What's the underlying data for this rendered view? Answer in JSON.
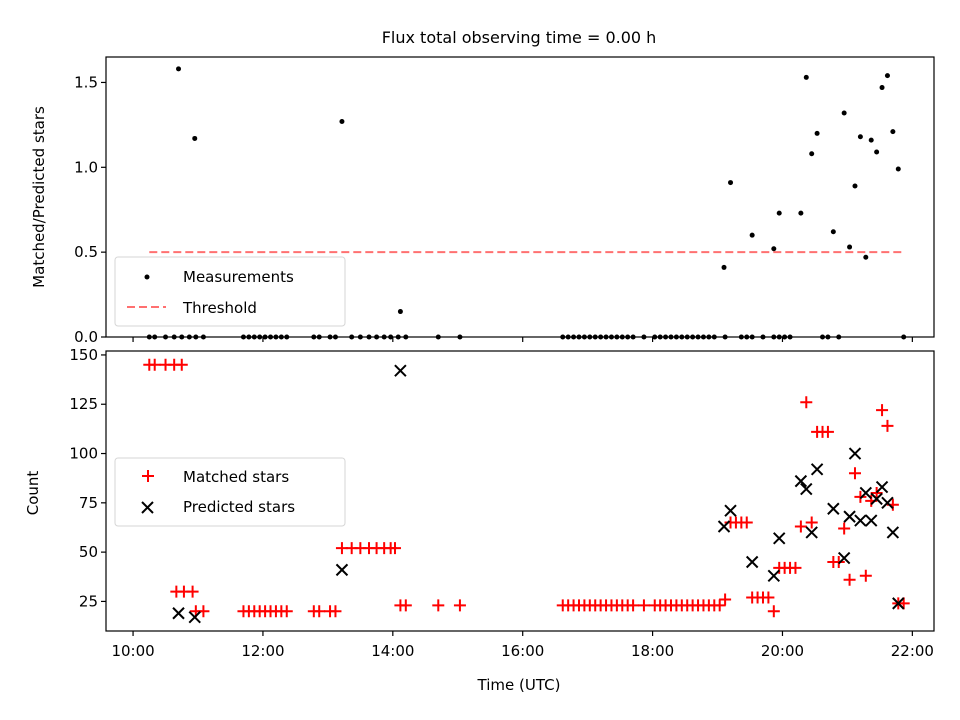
{
  "chart_data": [
    {
      "type": "scatter",
      "title": "Flux total observing time = 0.00 h",
      "xlabel": "",
      "ylabel": "Matched/Predicted stars",
      "xlim": [
        "09:35",
        "22:20"
      ],
      "ylim": [
        0,
        1.65
      ],
      "yticks": [
        "0.0",
        "0.5",
        "1.0",
        "1.5"
      ],
      "legend_position": "lower-left",
      "series": [
        {
          "name": "Measurements",
          "marker": "dot",
          "color": "#000000",
          "points": [
            [
              "10:15",
              0
            ],
            [
              "10:20",
              0
            ],
            [
              "10:30",
              0
            ],
            [
              "10:38",
              0
            ],
            [
              "10:45",
              0
            ],
            [
              "10:52",
              0
            ],
            [
              "10:58",
              0
            ],
            [
              "11:05",
              0
            ],
            [
              "10:42",
              1.58
            ],
            [
              "10:57",
              1.17
            ],
            [
              "11:42",
              0
            ],
            [
              "11:47",
              0
            ],
            [
              "11:52",
              0
            ],
            [
              "11:57",
              0
            ],
            [
              "12:02",
              0
            ],
            [
              "12:07",
              0
            ],
            [
              "12:12",
              0
            ],
            [
              "12:17",
              0
            ],
            [
              "12:22",
              0
            ],
            [
              "12:47",
              0
            ],
            [
              "12:52",
              0
            ],
            [
              "13:02",
              0
            ],
            [
              "13:07",
              0
            ],
            [
              "13:13",
              1.27
            ],
            [
              "13:22",
              0
            ],
            [
              "13:30",
              0
            ],
            [
              "13:38",
              0
            ],
            [
              "13:45",
              0
            ],
            [
              "13:52",
              0
            ],
            [
              "13:58",
              0
            ],
            [
              "14:05",
              0
            ],
            [
              "14:12",
              0
            ],
            [
              "14:07",
              0.15
            ],
            [
              "14:42",
              0
            ],
            [
              "15:02",
              0
            ],
            [
              "16:37",
              0
            ],
            [
              "16:42",
              0
            ],
            [
              "16:47",
              0
            ],
            [
              "16:52",
              0
            ],
            [
              "16:57",
              0
            ],
            [
              "17:02",
              0
            ],
            [
              "17:07",
              0
            ],
            [
              "17:12",
              0
            ],
            [
              "17:17",
              0
            ],
            [
              "17:22",
              0
            ],
            [
              "17:27",
              0
            ],
            [
              "17:32",
              0
            ],
            [
              "17:37",
              0
            ],
            [
              "17:42",
              0
            ],
            [
              "17:52",
              0
            ],
            [
              "18:02",
              0
            ],
            [
              "18:07",
              0
            ],
            [
              "18:12",
              0
            ],
            [
              "18:17",
              0
            ],
            [
              "18:22",
              0
            ],
            [
              "18:27",
              0
            ],
            [
              "18:32",
              0
            ],
            [
              "18:37",
              0
            ],
            [
              "18:42",
              0
            ],
            [
              "18:47",
              0
            ],
            [
              "18:52",
              0
            ],
            [
              "18:57",
              0
            ],
            [
              "19:07",
              0
            ],
            [
              "19:22",
              0
            ],
            [
              "19:27",
              0
            ],
            [
              "19:32",
              0
            ],
            [
              "19:42",
              0
            ],
            [
              "19:52",
              0
            ],
            [
              "19:57",
              0
            ],
            [
              "20:02",
              0
            ],
            [
              "20:07",
              0
            ],
            [
              "20:37",
              0
            ],
            [
              "20:42",
              0
            ],
            [
              "20:52",
              0
            ],
            [
              "21:52",
              0
            ],
            [
              "19:06",
              0.41
            ],
            [
              "19:12",
              0.91
            ],
            [
              "19:32",
              0.6
            ],
            [
              "19:52",
              0.52
            ],
            [
              "19:57",
              0.73
            ],
            [
              "20:17",
              0.73
            ],
            [
              "20:22",
              1.53
            ],
            [
              "20:27",
              1.08
            ],
            [
              "20:32",
              1.2
            ],
            [
              "20:47",
              0.62
            ],
            [
              "20:57",
              1.32
            ],
            [
              "21:02",
              0.53
            ],
            [
              "21:07",
              0.89
            ],
            [
              "21:12",
              1.18
            ],
            [
              "21:17",
              0.47
            ],
            [
              "21:22",
              1.16
            ],
            [
              "21:27",
              1.09
            ],
            [
              "21:32",
              1.47
            ],
            [
              "21:37",
              1.54
            ],
            [
              "21:42",
              1.21
            ],
            [
              "21:47",
              0.99
            ]
          ]
        },
        {
          "name": "Threshold",
          "type": "line",
          "style": "dashed",
          "color": "#ff7070",
          "x": [
            "10:15",
            "21:52"
          ],
          "y": [
            0.5,
            0.5
          ]
        }
      ]
    },
    {
      "type": "scatter",
      "title": "",
      "xlabel": "Time (UTC)",
      "ylabel": "Count",
      "xlim": [
        "09:35",
        "22:20"
      ],
      "ylim": [
        10,
        152
      ],
      "xticks": [
        "10:00",
        "12:00",
        "14:00",
        "16:00",
        "18:00",
        "20:00",
        "22:00"
      ],
      "yticks": [
        "25",
        "50",
        "75",
        "100",
        "125",
        "150"
      ],
      "legend_position": "center-left",
      "series": [
        {
          "name": "Matched stars",
          "marker": "plus",
          "color": "#ff0000",
          "points": [
            [
              "10:15",
              145
            ],
            [
              "10:20",
              145
            ],
            [
              "10:30",
              145
            ],
            [
              "10:38",
              145
            ],
            [
              "10:45",
              145
            ],
            [
              "10:40",
              30
            ],
            [
              "10:47",
              30
            ],
            [
              "10:55",
              30
            ],
            [
              "10:58",
              20
            ],
            [
              "11:05",
              20
            ],
            [
              "11:42",
              20
            ],
            [
              "11:47",
              20
            ],
            [
              "11:52",
              20
            ],
            [
              "11:57",
              20
            ],
            [
              "12:02",
              20
            ],
            [
              "12:07",
              20
            ],
            [
              "12:12",
              20
            ],
            [
              "12:17",
              20
            ],
            [
              "12:22",
              20
            ],
            [
              "12:47",
              20
            ],
            [
              "12:52",
              20
            ],
            [
              "13:02",
              20
            ],
            [
              "13:07",
              20
            ],
            [
              "13:13",
              52
            ],
            [
              "13:22",
              52
            ],
            [
              "13:30",
              52
            ],
            [
              "13:38",
              52
            ],
            [
              "13:45",
              52
            ],
            [
              "13:52",
              52
            ],
            [
              "13:58",
              52
            ],
            [
              "14:02",
              52
            ],
            [
              "14:07",
              23
            ],
            [
              "14:12",
              23
            ],
            [
              "14:42",
              23
            ],
            [
              "15:02",
              23
            ],
            [
              "16:37",
              23
            ],
            [
              "16:42",
              23
            ],
            [
              "16:47",
              23
            ],
            [
              "16:52",
              23
            ],
            [
              "16:57",
              23
            ],
            [
              "17:02",
              23
            ],
            [
              "17:07",
              23
            ],
            [
              "17:12",
              23
            ],
            [
              "17:17",
              23
            ],
            [
              "17:22",
              23
            ],
            [
              "17:27",
              23
            ],
            [
              "17:32",
              23
            ],
            [
              "17:37",
              23
            ],
            [
              "17:42",
              23
            ],
            [
              "17:52",
              23
            ],
            [
              "18:02",
              23
            ],
            [
              "18:07",
              23
            ],
            [
              "18:12",
              23
            ],
            [
              "18:17",
              23
            ],
            [
              "18:22",
              23
            ],
            [
              "18:27",
              23
            ],
            [
              "18:32",
              23
            ],
            [
              "18:37",
              23
            ],
            [
              "18:42",
              23
            ],
            [
              "18:47",
              23
            ],
            [
              "18:52",
              23
            ],
            [
              "18:57",
              23
            ],
            [
              "19:02",
              23
            ],
            [
              "19:07",
              26
            ],
            [
              "19:12",
              65
            ],
            [
              "19:17",
              65
            ],
            [
              "19:22",
              65
            ],
            [
              "19:27",
              65
            ],
            [
              "19:32",
              27
            ],
            [
              "19:37",
              27
            ],
            [
              "19:42",
              27
            ],
            [
              "19:47",
              27
            ],
            [
              "19:52",
              20
            ],
            [
              "19:57",
              42
            ],
            [
              "20:02",
              42
            ],
            [
              "20:07",
              42
            ],
            [
              "20:12",
              42
            ],
            [
              "20:17",
              63
            ],
            [
              "20:22",
              126
            ],
            [
              "20:27",
              65
            ],
            [
              "20:32",
              111
            ],
            [
              "20:37",
              111
            ],
            [
              "20:42",
              111
            ],
            [
              "20:47",
              45
            ],
            [
              "20:52",
              45
            ],
            [
              "20:57",
              62
            ],
            [
              "21:02",
              36
            ],
            [
              "21:07",
              90
            ],
            [
              "21:12",
              78
            ],
            [
              "21:17",
              38
            ],
            [
              "21:22",
              76
            ],
            [
              "21:27",
              80
            ],
            [
              "21:32",
              122
            ],
            [
              "21:37",
              114
            ],
            [
              "21:42",
              74
            ],
            [
              "21:47",
              24
            ],
            [
              "21:52",
              24
            ]
          ]
        },
        {
          "name": "Predicted stars",
          "marker": "x",
          "color": "#000000",
          "points": [
            [
              "10:42",
              19
            ],
            [
              "10:57",
              17
            ],
            [
              "13:13",
              41
            ],
            [
              "14:07",
              142
            ],
            [
              "19:06",
              63
            ],
            [
              "19:12",
              71
            ],
            [
              "19:32",
              45
            ],
            [
              "19:52",
              38
            ],
            [
              "19:57",
              57
            ],
            [
              "20:17",
              86
            ],
            [
              "20:22",
              82
            ],
            [
              "20:27",
              60
            ],
            [
              "20:32",
              92
            ],
            [
              "20:47",
              72
            ],
            [
              "20:57",
              47
            ],
            [
              "21:02",
              68
            ],
            [
              "21:07",
              100
            ],
            [
              "21:12",
              66
            ],
            [
              "21:17",
              80
            ],
            [
              "21:22",
              66
            ],
            [
              "21:27",
              77
            ],
            [
              "21:32",
              83
            ],
            [
              "21:37",
              75
            ],
            [
              "21:42",
              60
            ],
            [
              "21:47",
              24
            ]
          ]
        }
      ]
    }
  ]
}
